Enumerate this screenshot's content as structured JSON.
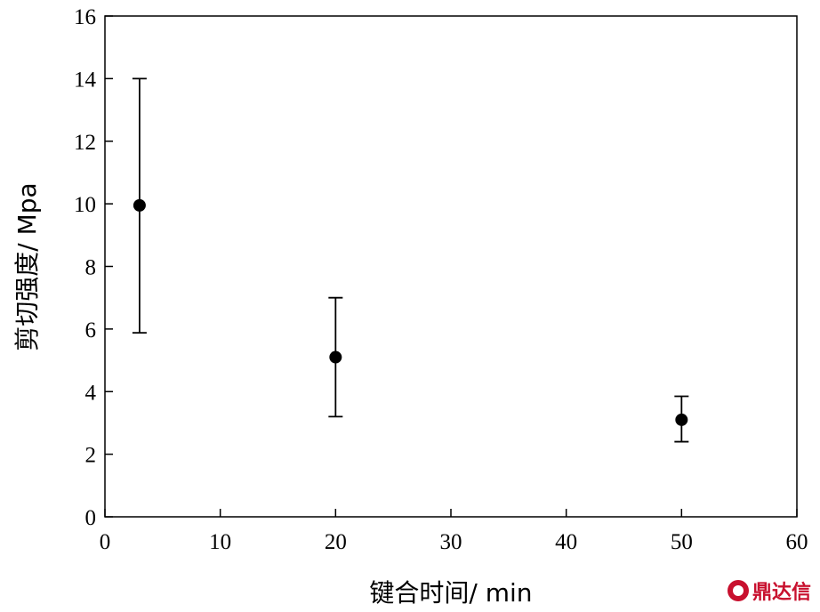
{
  "chart_data": {
    "type": "scatter",
    "xlabel": "键合时间/ min",
    "ylabel": "剪切强度/ Mpa",
    "xlim": [
      0,
      60
    ],
    "ylim": [
      0,
      16
    ],
    "xticks": [
      0,
      10,
      20,
      30,
      40,
      50,
      60
    ],
    "yticks": [
      0,
      2,
      4,
      6,
      8,
      10,
      12,
      14,
      16
    ],
    "grid": false,
    "points": [
      {
        "x": 3,
        "y": 9.95,
        "err_low": 5.88,
        "err_high": 14.0
      },
      {
        "x": 20,
        "y": 5.1,
        "err_low": 3.2,
        "err_high": 7.0
      },
      {
        "x": 50,
        "y": 3.1,
        "err_low": 2.4,
        "err_high": 3.85
      }
    ],
    "marker_color": "#000000"
  },
  "watermark": {
    "text": "鼎达信",
    "color": "#c8102e"
  }
}
